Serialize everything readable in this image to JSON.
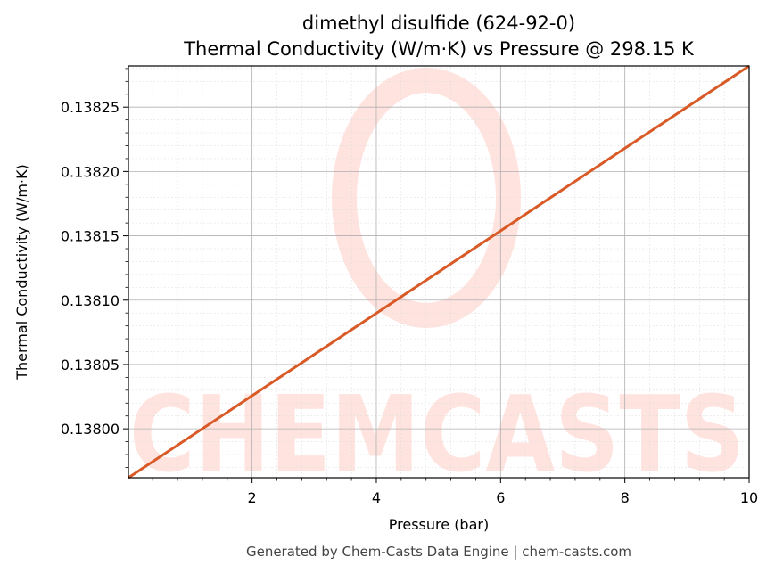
{
  "chart_data": {
    "type": "line",
    "title": "dimethyl disulfide (624-92-0)",
    "subtitle": "Thermal Conductivity (W/m·K) vs Pressure @ 298.15 K",
    "xlabel": "Pressure (bar)",
    "ylabel": "Thermal Conductivity (W/m·K)",
    "xlim": [
      0.01,
      10
    ],
    "ylim": [
      0.137962,
      0.138282
    ],
    "x_ticks": [
      2,
      4,
      6,
      8,
      10
    ],
    "y_ticks": [
      0.138,
      0.13805,
      0.1381,
      0.13815,
      0.1382,
      0.13825
    ],
    "x_tick_labels": [
      "2",
      "4",
      "6",
      "8",
      "10"
    ],
    "y_tick_labels": [
      "0.13800",
      "0.13805",
      "0.13810",
      "0.13815",
      "0.13820",
      "0.13825"
    ],
    "grid": true,
    "series": [
      {
        "color": "#d95a26",
        "x": [
          0.01,
          2,
          4,
          6,
          8,
          10
        ],
        "y": [
          0.137962,
          0.1380257,
          0.1380898,
          0.1381539,
          0.138218,
          0.138282
        ]
      }
    ]
  },
  "watermark": {
    "text": "CHEMCASTS",
    "color": "#ffe3df"
  },
  "footer": "Generated by Chem-Casts Data Engine | chem-casts.com"
}
